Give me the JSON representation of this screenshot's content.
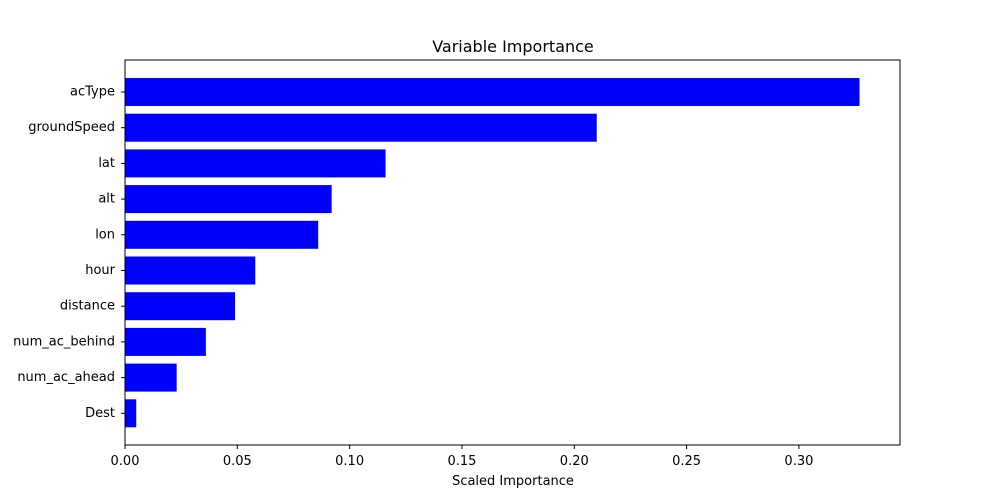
{
  "chart_data": {
    "type": "bar",
    "orientation": "horizontal",
    "title": "Variable Importance",
    "xlabel": "Scaled Importance",
    "ylabel": "",
    "xlim": [
      0,
      0.345
    ],
    "xticks": [
      0.0,
      0.05,
      0.1,
      0.15,
      0.2,
      0.25,
      0.3
    ],
    "xtick_labels": [
      "0.00",
      "0.05",
      "0.10",
      "0.15",
      "0.20",
      "0.25",
      "0.30"
    ],
    "bar_color": "#0000ff",
    "grid": false,
    "categories": [
      "acType",
      "groundSpeed",
      "lat",
      "alt",
      "lon",
      "hour",
      "distance",
      "num_ac_behind",
      "num_ac_ahead",
      "Dest"
    ],
    "values": [
      0.327,
      0.21,
      0.116,
      0.092,
      0.086,
      0.058,
      0.049,
      0.036,
      0.023,
      0.005
    ]
  }
}
